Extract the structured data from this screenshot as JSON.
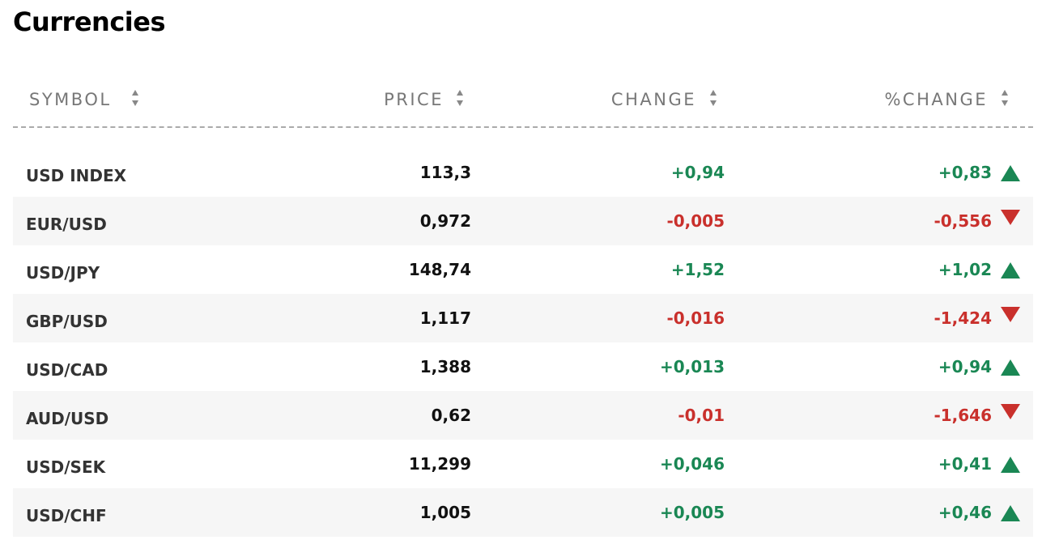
{
  "header": {
    "title": "Currencies"
  },
  "table": {
    "columns": [
      "SYMBOL",
      "PRICE",
      "CHANGE",
      "%CHANGE"
    ],
    "rows": [
      [
        "USD INDEX",
        "113,3",
        "+0,94",
        "+0,83"
      ],
      [
        "EUR/USD",
        "0,972",
        "-0,005",
        "-0,556"
      ],
      [
        "USD/JPY",
        "148,74",
        "+1,52",
        "+1,02"
      ],
      [
        "GBP/USD",
        "1,117",
        "-0,016",
        "-1,424"
      ],
      [
        "USD/CAD",
        "1,388",
        "+0,013",
        "+0,94"
      ],
      [
        "AUD/USD",
        "0,62",
        "-0,01",
        "-1,646"
      ],
      [
        "USD/SEK",
        "11,299",
        "+0,046",
        "+0,41"
      ],
      [
        "USD/CHF",
        "1,005",
        "+0,005",
        "+0,46"
      ]
    ]
  }
}
